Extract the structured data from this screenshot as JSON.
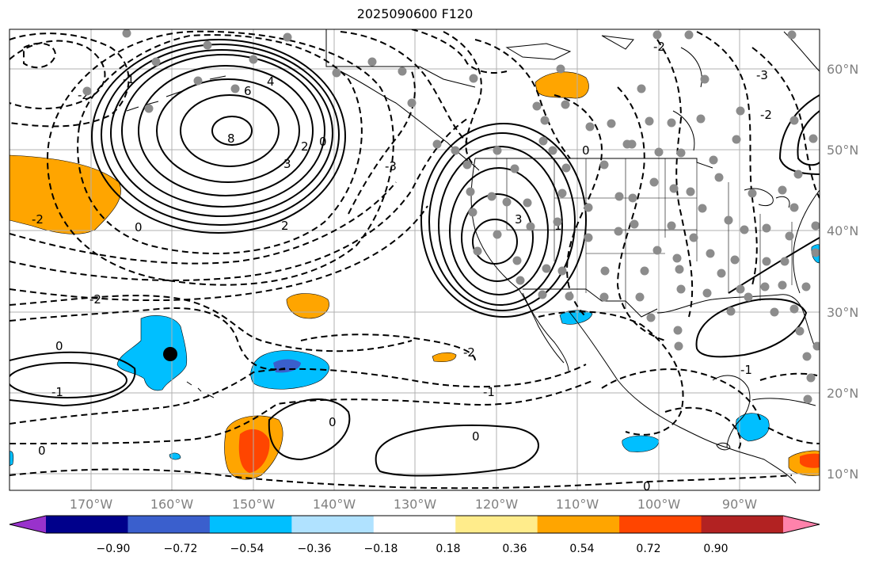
{
  "map": {
    "title": "2025090600 F120",
    "lon_labels": [
      "170°W",
      "160°W",
      "150°W",
      "140°W",
      "130°W",
      "120°W",
      "110°W",
      "100°W",
      "90°W"
    ],
    "lat_labels": [
      "60°N",
      "50°N",
      "40°N",
      "30°N",
      "20°N",
      "10°N"
    ],
    "contour_labels": [
      "8",
      "6",
      "4",
      "2",
      "3",
      "0",
      "-2",
      "-1",
      "-3",
      "2",
      "3",
      "0",
      "-2",
      "1",
      "-1",
      "-2",
      "0",
      "-2",
      "-1",
      "0",
      "0",
      "0",
      "0",
      "-2",
      "-3",
      "-1",
      "-2",
      "0"
    ],
    "marker": "black-dot-marker",
    "station_color": "#8c8c8c"
  },
  "colorbar": {
    "ticks": [
      "−0.90",
      "−0.72",
      "−0.54",
      "−0.36",
      "−0.18",
      "0.18",
      "0.36",
      "0.54",
      "0.72",
      "0.90"
    ],
    "colors": [
      "#9932cc",
      "#00008b",
      "#3a5fcd",
      "#00bfff",
      "#b0e2ff",
      "#ffffff",
      "#ffec8b",
      "#ffa500",
      "#ff4500",
      "#b22222",
      "#ff82ab"
    ]
  }
}
